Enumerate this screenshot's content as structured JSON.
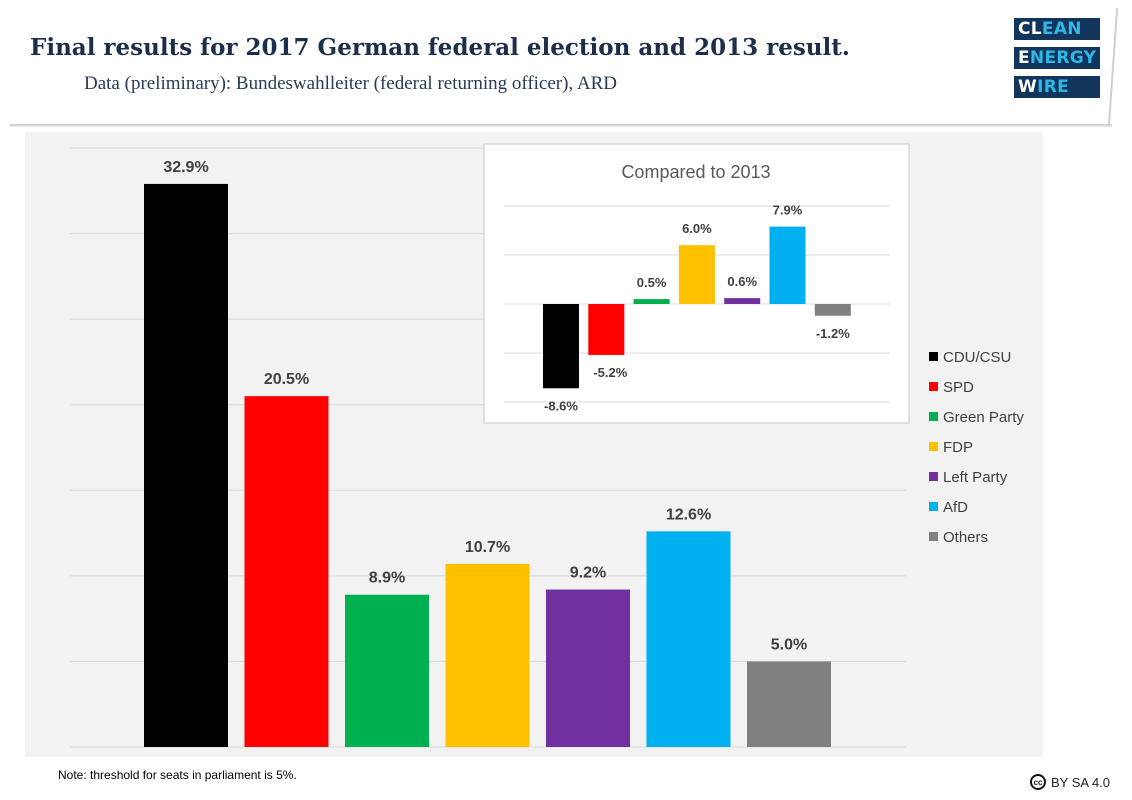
{
  "header": {
    "title": "Final results for 2017 German federal election and 2013 result.",
    "subtitle": "Data (preliminary): Bundeswahlleiter (federal returning officer), ARD",
    "logo": [
      "CLEAN",
      "ENERGY",
      "WIRE"
    ]
  },
  "footer": {
    "note": "Note: threshold for seats in parliament is 5%.",
    "license_icon": "cc-icon",
    "license": "BY SA 4.0"
  },
  "colors": {
    "CDU/CSU": "#000000",
    "SPD": "#ff0000",
    "Green Party": "#00b050",
    "FDP": "#ffc000",
    "Left Party": "#7030a0",
    "AfD": "#00b0f0",
    "Others": "#808080"
  },
  "chart_data": [
    {
      "type": "bar",
      "title": "",
      "categories": [
        "CDU/CSU",
        "SPD",
        "Green Party",
        "FDP",
        "Left Party",
        "AfD",
        "Others"
      ],
      "values": [
        32.9,
        20.5,
        8.9,
        10.7,
        9.2,
        12.6,
        5.0
      ],
      "labels": [
        "32.9%",
        "20.5%",
        "8.9%",
        "10.7%",
        "9.2%",
        "12.6%",
        "5.0%"
      ],
      "unit": "%",
      "ylim": [
        0,
        35
      ],
      "grid_step": 5,
      "grid": true,
      "xlabel": "",
      "ylabel": "",
      "legend": {
        "position": "right",
        "entries": [
          "CDU/CSU",
          "SPD",
          "Green Party",
          "FDP",
          "Left Party",
          "AfD",
          "Others"
        ]
      }
    },
    {
      "type": "bar",
      "title": "Compared to 2013",
      "categories": [
        "CDU/CSU",
        "SPD",
        "Green Party",
        "FDP",
        "Left Party",
        "AfD",
        "Others"
      ],
      "values": [
        -8.6,
        -5.2,
        0.5,
        6.0,
        0.6,
        7.9,
        -1.2
      ],
      "labels": [
        "-8.6%",
        "-5.2%",
        "0.5%",
        "6.0%",
        "0.6%",
        "7.9%",
        "-1.2%"
      ],
      "unit": "%",
      "ylim": [
        -10,
        10
      ],
      "grid_step": 5,
      "grid": true,
      "placement": "inset top-right"
    }
  ]
}
